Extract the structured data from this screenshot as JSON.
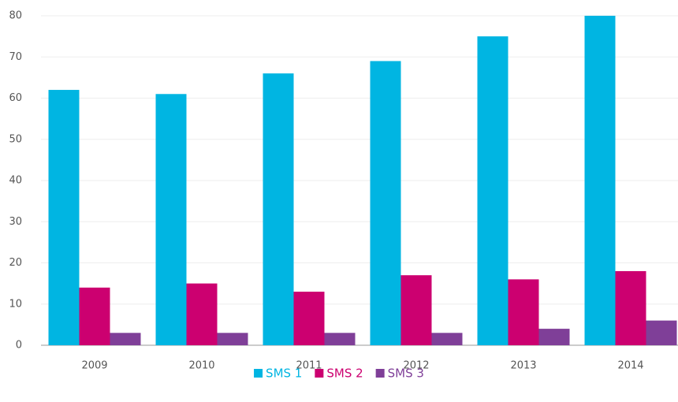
{
  "chart_data": {
    "type": "bar",
    "categories": [
      "2009",
      "2010",
      "2011",
      "2012",
      "2013",
      "2014"
    ],
    "series": [
      {
        "name": "SMS 1",
        "color": "#00b5e2",
        "values": [
          62,
          61,
          66,
          69,
          75,
          80
        ]
      },
      {
        "name": "SMS 2",
        "color": "#cc0070",
        "values": [
          14,
          15,
          13,
          17,
          16,
          18
        ]
      },
      {
        "name": "SMS 3",
        "color": "#7f3f98",
        "values": [
          3,
          3,
          3,
          3,
          4,
          6
        ]
      }
    ],
    "ylim": [
      0,
      80
    ],
    "yticks": [
      0,
      10,
      20,
      30,
      40,
      50,
      60,
      70,
      80
    ],
    "grid": true,
    "legend": "bottom"
  }
}
